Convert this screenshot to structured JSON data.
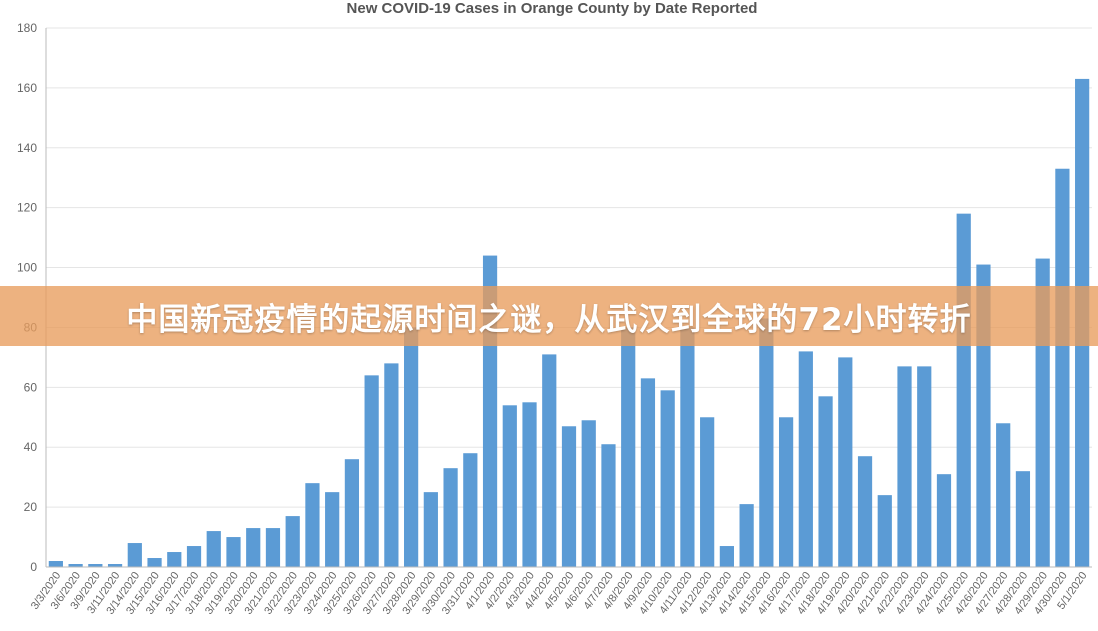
{
  "banner": {
    "text": "中国新冠疫情的起源时间之谜，从武汉到全球的72小时转折"
  },
  "colors": {
    "bar": "#5b9bd5",
    "grid": "#e5e5e5",
    "axis": "#bbbbbb",
    "text": "#666666",
    "banner": "#e89c5c"
  },
  "chart_data": {
    "type": "bar",
    "title": "New COVID-19 Cases in Orange County by Date Reported",
    "xlabel": "",
    "ylabel": "",
    "ylim": [
      0,
      180
    ],
    "yticks": [
      0,
      20,
      40,
      60,
      80,
      100,
      120,
      140,
      160,
      180
    ],
    "grid": true,
    "legend": "none",
    "categories": [
      "3/3/2020",
      "3/6/2020",
      "3/9/2020",
      "3/11/2020",
      "3/14/2020",
      "3/15/2020",
      "3/16/2020",
      "3/17/2020",
      "3/18/2020",
      "3/19/2020",
      "3/20/2020",
      "3/21/2020",
      "3/22/2020",
      "3/23/2020",
      "3/24/2020",
      "3/25/2020",
      "3/26/2020",
      "3/27/2020",
      "3/28/2020",
      "3/29/2020",
      "3/30/2020",
      "3/31/2020",
      "4/1/2020",
      "4/2/2020",
      "4/3/2020",
      "4/4/2020",
      "4/5/2020",
      "4/6/2020",
      "4/7/2020",
      "4/8/2020",
      "4/9/2020",
      "4/10/2020",
      "4/11/2020",
      "4/12/2020",
      "4/13/2020",
      "4/14/2020",
      "4/15/2020",
      "4/16/2020",
      "4/17/2020",
      "4/18/2020",
      "4/19/2020",
      "4/20/2020",
      "4/21/2020",
      "4/22/2020",
      "4/23/2020",
      "4/24/2020",
      "4/25/2020",
      "4/26/2020",
      "4/27/2020",
      "4/28/2020",
      "4/29/2020",
      "4/30/2020",
      "5/1/2020"
    ],
    "values": [
      2,
      1,
      1,
      1,
      8,
      3,
      5,
      7,
      12,
      10,
      13,
      13,
      17,
      28,
      25,
      36,
      64,
      68,
      80,
      25,
      33,
      38,
      104,
      54,
      55,
      71,
      47,
      49,
      41,
      80,
      63,
      59,
      80,
      50,
      7,
      21,
      83,
      50,
      72,
      57,
      70,
      37,
      24,
      67,
      67,
      31,
      118,
      101,
      48,
      32,
      103,
      133,
      163
    ]
  }
}
